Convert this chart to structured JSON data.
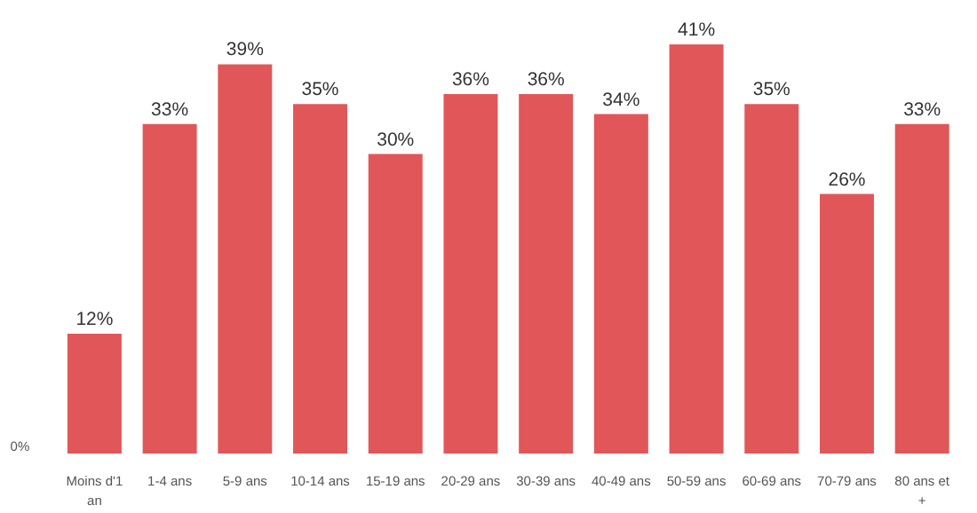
{
  "chart_data": {
    "type": "bar",
    "categories": [
      "Moins d'1 an",
      "1-4 ans",
      "5-9 ans",
      "10-14 ans",
      "15-19 ans",
      "20-29 ans",
      "30-39 ans",
      "40-49 ans",
      "50-59 ans",
      "60-69 ans",
      "70-79 ans",
      "80 ans et +"
    ],
    "values": [
      12,
      33,
      39,
      35,
      30,
      36,
      36,
      34,
      41,
      35,
      26,
      33
    ],
    "value_labels": [
      "12%",
      "33%",
      "39%",
      "35%",
      "30%",
      "36%",
      "36%",
      "34%",
      "41%",
      "35%",
      "26%",
      "33%"
    ],
    "color": "#e15759",
    "annotations": [
      "0%"
    ],
    "grid": false
  }
}
